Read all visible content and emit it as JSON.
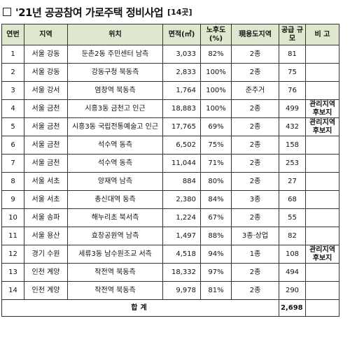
{
  "title": {
    "main": "'21년 공공참여 가로주택 정비사업",
    "sub": "[14곳]"
  },
  "headers": [
    "연번",
    "지역",
    "위치",
    "면적(㎡)",
    "노후도 (%)",
    "現용도지역",
    "공급 규모",
    "비 고"
  ],
  "rows": [
    {
      "no": "1",
      "region": "서울 강동",
      "location": "둔촌2동 주민센터 남측",
      "area": "3,033",
      "aging": "82%",
      "zone": "2종",
      "supply": "81",
      "remark": ""
    },
    {
      "no": "2",
      "region": "서울 강동",
      "location": "강동구청 북동측",
      "area": "2,833",
      "aging": "100%",
      "zone": "2종",
      "supply": "75",
      "remark": ""
    },
    {
      "no": "3",
      "region": "서울 강서",
      "location": "염창역 북동측",
      "area": "1,764",
      "aging": "100%",
      "zone": "준주거",
      "supply": "76",
      "remark": ""
    },
    {
      "no": "4",
      "region": "서울 금천",
      "location": "시흥3동 금천고 인근",
      "area": "18,883",
      "aging": "100%",
      "zone": "2종",
      "supply": "499",
      "remark": "관리지역 후보지"
    },
    {
      "no": "5",
      "region": "서울 금천",
      "location": "시흥3동 국립전통예술고 인근",
      "area": "17,765",
      "aging": "69%",
      "zone": "2종",
      "supply": "432",
      "remark": "관리지역 후보지"
    },
    {
      "no": "6",
      "region": "서울 금천",
      "location": "석수역 동측",
      "area": "6,502",
      "aging": "75%",
      "zone": "2종",
      "supply": "158",
      "remark": ""
    },
    {
      "no": "7",
      "region": "서울 금천",
      "location": "석수역 동측",
      "area": "11,044",
      "aging": "71%",
      "zone": "2종",
      "supply": "253",
      "remark": ""
    },
    {
      "no": "8",
      "region": "서울 서초",
      "location": "양재역 남측",
      "area": "884",
      "aging": "80%",
      "zone": "2종",
      "supply": "27",
      "remark": ""
    },
    {
      "no": "9",
      "region": "서울 서초",
      "location": "총신대역 동측",
      "area": "2,380",
      "aging": "84%",
      "zone": "3종",
      "supply": "68",
      "remark": ""
    },
    {
      "no": "10",
      "region": "서울 송파",
      "location": "해누리초 북서측",
      "area": "1,224",
      "aging": "67%",
      "zone": "2종",
      "supply": "55",
      "remark": ""
    },
    {
      "no": "11",
      "region": "서울 용산",
      "location": "효창공원역 남측",
      "area": "1,497",
      "aging": "88%",
      "zone": "3종·상업",
      "supply": "82",
      "remark": ""
    },
    {
      "no": "12",
      "region": "경기 수원",
      "location": "세류3동 남수원조교 서측",
      "area": "4,518",
      "aging": "94%",
      "zone": "1종",
      "supply": "108",
      "remark": "관리지역 후보지"
    },
    {
      "no": "13",
      "region": "인천 계양",
      "location": "작전역 북동측",
      "area": "18,332",
      "aging": "97%",
      "zone": "2종",
      "supply": "494",
      "remark": ""
    },
    {
      "no": "14",
      "region": "인천 계양",
      "location": "작전역 북동측",
      "area": "9,978",
      "aging": "81%",
      "zone": "2종",
      "supply": "290",
      "remark": ""
    }
  ],
  "total": {
    "label": "합계",
    "value": "2,698"
  }
}
